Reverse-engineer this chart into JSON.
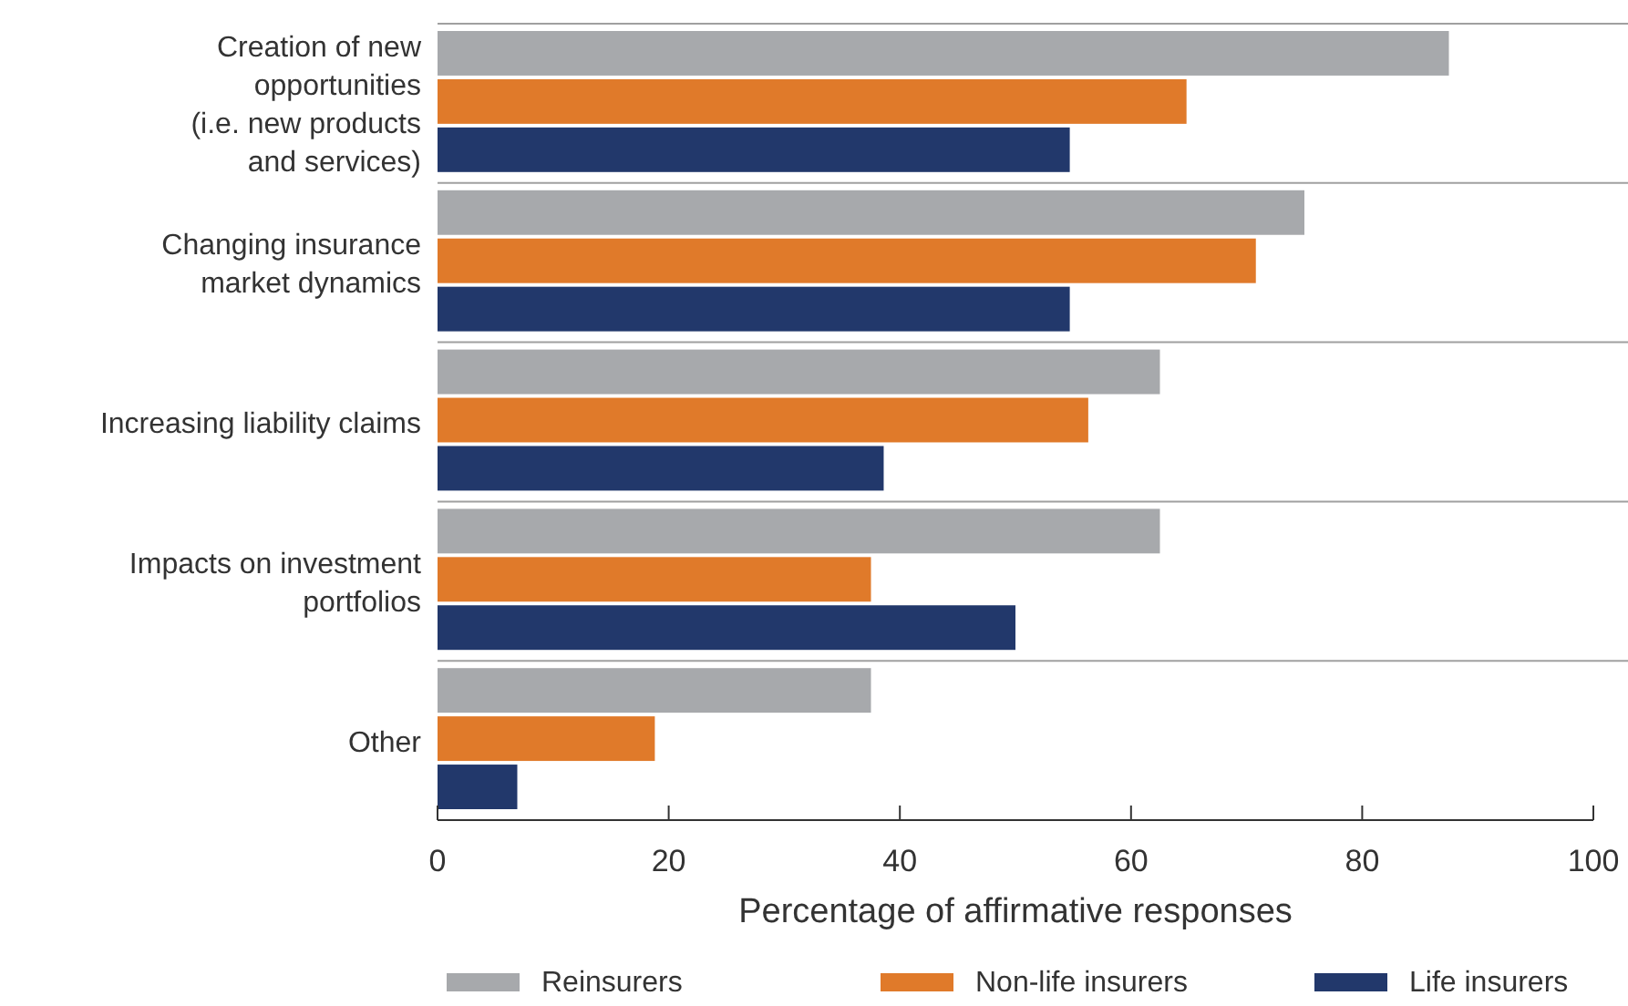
{
  "chart_data": {
    "type": "bar",
    "orientation": "horizontal",
    "categories": [
      "Creation of new\nopportunities\n(i.e. new products\nand services)",
      "Changing insurance\nmarket dynamics",
      "Increasing liability claims",
      "Impacts on investment\nportfolios",
      "Other"
    ],
    "series": [
      {
        "name": "Reinsurers",
        "color": "#a7a9ac",
        "values": [
          87.5,
          75,
          62.5,
          62.5,
          37.5
        ]
      },
      {
        "name": "Non-life insurers",
        "color": "#e07a2a",
        "values": [
          64.8,
          70.8,
          56.3,
          37.5,
          18.8
        ]
      },
      {
        "name": "Life insurers",
        "color": "#22386b",
        "values": [
          54.7,
          54.7,
          38.6,
          50,
          6.9
        ]
      }
    ],
    "xlim": [
      0,
      100
    ],
    "xticks": [
      0,
      20,
      40,
      60,
      80,
      100
    ],
    "xlabel": "Percentage of affirmative responses",
    "legend": "bottom",
    "grid": false
  }
}
